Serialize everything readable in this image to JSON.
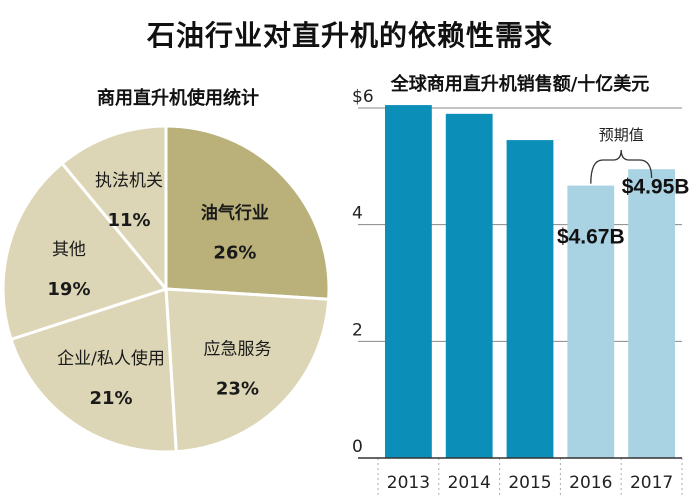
{
  "title": "石油行业对直升机的依赖性需求",
  "chart_data": [
    {
      "type": "pie",
      "title": "商用直升机使用统计",
      "slices": [
        {
          "label": "油气行业",
          "value": 26,
          "pct_label": "26%",
          "color": "#b9b07a"
        },
        {
          "label": "应急服务",
          "value": 23,
          "pct_label": "23%",
          "color": "#ddd6b6"
        },
        {
          "label": "企业/私人使用",
          "value": 21,
          "pct_label": "21%",
          "color": "#ddd6b6"
        },
        {
          "label": "其他",
          "value": 19,
          "pct_label": "19%",
          "color": "#ddd6b6"
        },
        {
          "label": "执法机关",
          "value": 11,
          "pct_label": "11%",
          "color": "#ddd6b6"
        }
      ]
    },
    {
      "type": "bar",
      "title": "全球商用直升机销售额/十亿美元",
      "categories": [
        "2013",
        "2014",
        "2015",
        "2016",
        "2017"
      ],
      "values": [
        6.05,
        5.9,
        5.45,
        4.67,
        4.95
      ],
      "bar_colors": [
        "#0b8fb8",
        "#0b8fb8",
        "#0b8fb8",
        "#a9d3e3",
        "#a9d3e3"
      ],
      "data_labels": [
        "",
        "",
        "",
        "$4.67B",
        "$4.95B"
      ],
      "ylim": [
        0,
        6
      ],
      "yticks": [
        0,
        2,
        4,
        6
      ],
      "ytick_labels": [
        "0",
        "2",
        "4",
        "$6"
      ],
      "annotation": "预期值",
      "grid": true
    }
  ]
}
